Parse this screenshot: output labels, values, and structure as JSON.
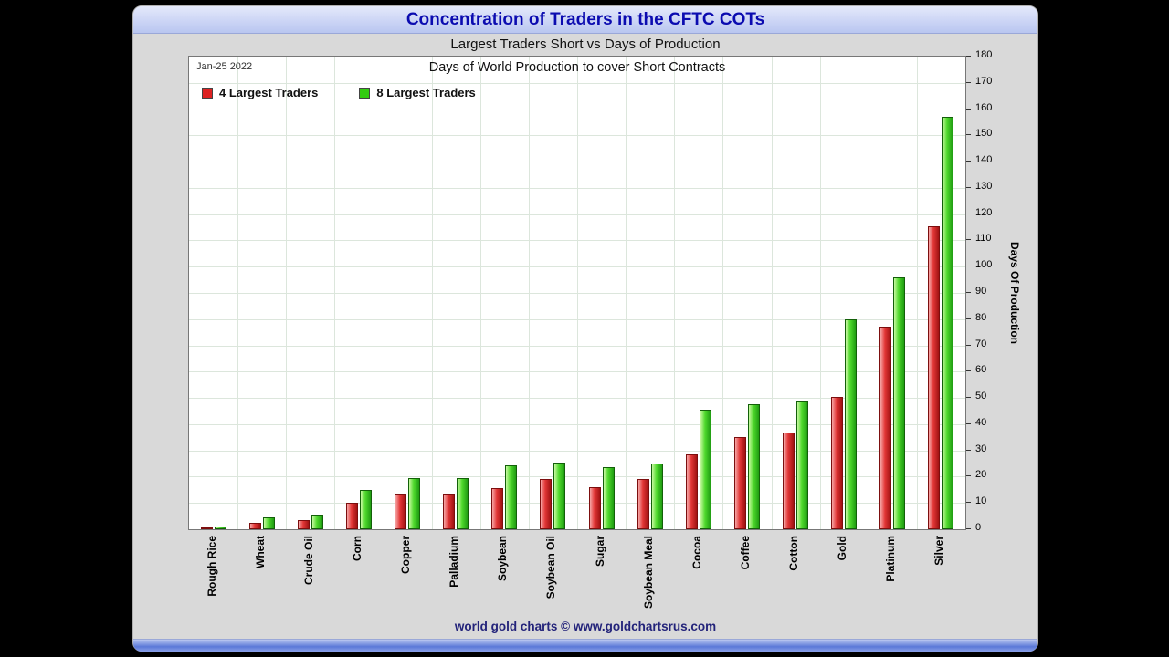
{
  "page": {
    "title": "Concentration of Traders in the CFTC COTs",
    "subtitle": "Largest Traders Short vs Days of Production",
    "footer": "world gold charts © www.goldchartsrus.com"
  },
  "chart_data": {
    "type": "bar",
    "title": "Days of World Production to cover Short Contracts",
    "date_label": "Jan-25 2022",
    "ylabel": "Days Of Production",
    "ylim": [
      0,
      180
    ],
    "ytick_step": 10,
    "grid": true,
    "legend_position": "top-left",
    "categories": [
      "Rough Rice",
      "Wheat",
      "Crude Oil",
      "Corn",
      "Copper",
      "Palladium",
      "Soybean",
      "Soybean Oil",
      "Sugar",
      "Soybean Meal",
      "Cocoa",
      "Coffee",
      "Cotton",
      "Gold",
      "Platinum",
      "Silver"
    ],
    "series": [
      {
        "name": "4 Largest Traders",
        "color": "#dd2222",
        "values": [
          0.5,
          2.5,
          3.5,
          10,
          13.5,
          13.5,
          15.5,
          19,
          16,
          19,
          28.5,
          35,
          37,
          50.5,
          77,
          115.5
        ]
      },
      {
        "name": "8 Largest Traders",
        "color": "#33cc11",
        "values": [
          1,
          4.5,
          5.5,
          15,
          19.5,
          19.5,
          24.5,
          25.5,
          23.5,
          25,
          45.5,
          47.5,
          48.5,
          80,
          96,
          157
        ]
      }
    ]
  }
}
